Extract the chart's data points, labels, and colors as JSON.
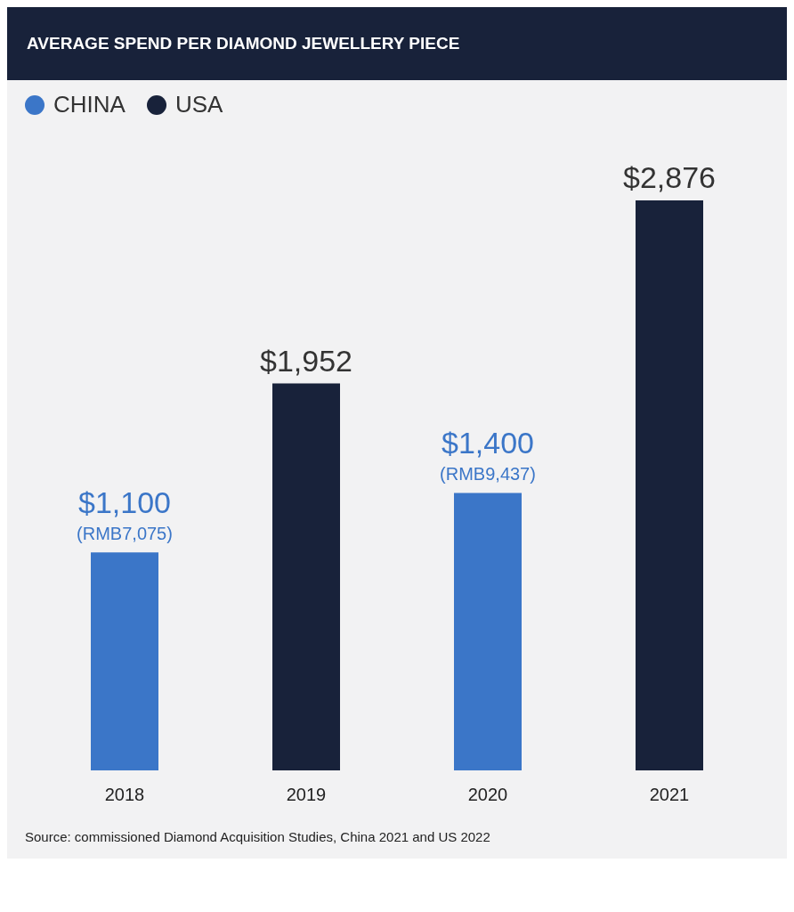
{
  "chart_data": {
    "type": "bar",
    "title": "AVERAGE SPEND PER DIAMOND JEWELLERY PIECE",
    "categories": [
      "2018",
      "2019",
      "2020",
      "2021"
    ],
    "series": [
      {
        "name": "CHINA",
        "color": "#3b76c8",
        "values": [
          1100,
          null,
          1400,
          null
        ],
        "value_labels": [
          "$1,100\n(RMB7,075)",
          null,
          "$1,400\n(RMB9,437)",
          null
        ]
      },
      {
        "name": "USA",
        "color": "#18223a",
        "values": [
          null,
          1952,
          null,
          2876
        ],
        "value_labels": [
          null,
          "$1,952",
          null,
          "$2,876"
        ]
      }
    ],
    "legend": "top left",
    "grid": false,
    "annotations": [
      "Source: commissioned Diamond Acquisition Studies, China 2021 and US 2022"
    ]
  }
}
